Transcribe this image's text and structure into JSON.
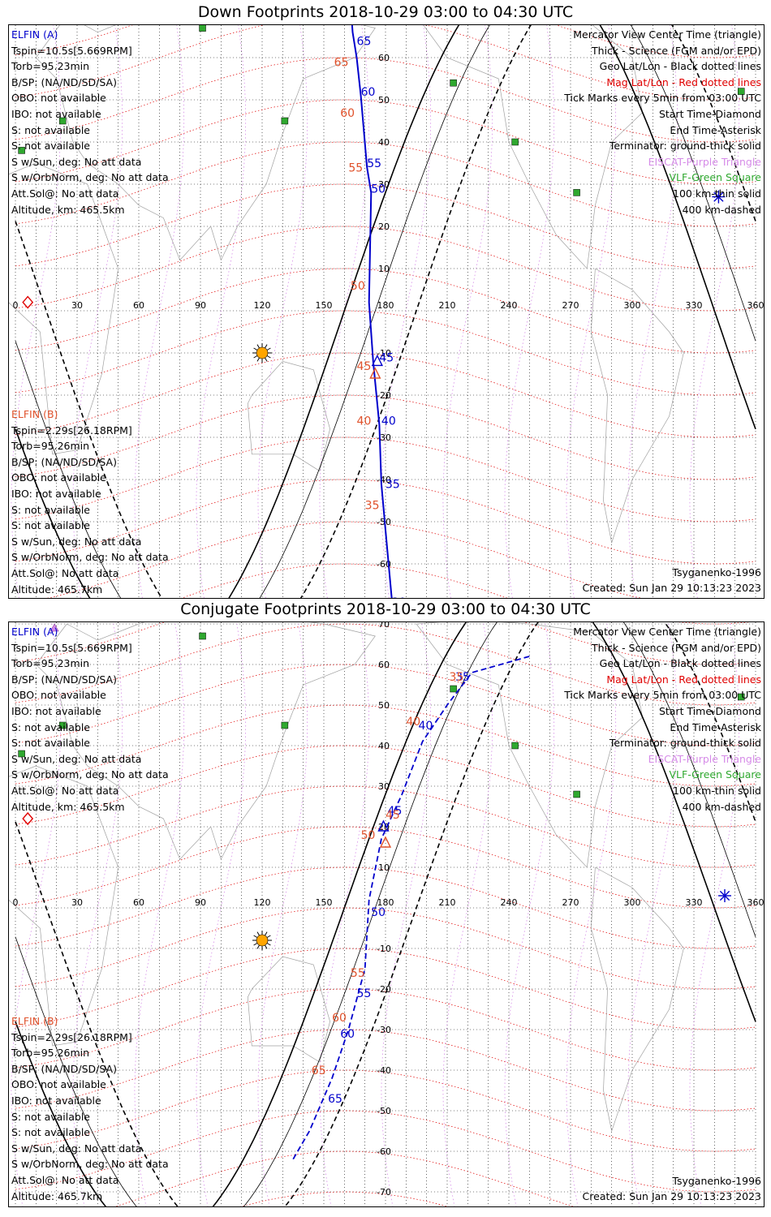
{
  "panels": [
    {
      "title": "Down Footprints 2018-10-29 03:00 to 04:30 UTC",
      "elfin_a": {
        "header": "ELFIN (A)",
        "lines": [
          "Tspin=10.5s[5.669RPM]",
          "Torb=95.23min",
          "B/SP: (NA/ND/SD/SA)",
          "OBO: not available",
          "IBO: not available",
          "S: not available",
          "S: not available",
          "S w/Sun, deg: No att data",
          "S w/OrbNorm, deg: No att data",
          "Att.Sol@: No att data",
          "Altitude, km: 465.5km"
        ]
      },
      "elfin_b": {
        "header": "ELFIN (B)",
        "lines": [
          "Tspin=2.29s[26.18RPM]",
          "Torb=95.26min",
          "B/SP: (NA/ND/SD/SA)",
          "OBO: not available",
          "IBO: not available",
          "S: not available",
          "S: not available",
          "S w/Sun, deg: No att data",
          "S w/OrbNorm, deg: No att data",
          "Att.Sol@: No att data",
          "Altitude: 465.7km"
        ]
      },
      "model": "Tsyganenko-1996",
      "created": "Created: Sun Jan 29 10:13:23 2023"
    },
    {
      "title": "Conjugate Footprints 2018-10-29 03:00 to 04:30 UTC",
      "elfin_a": {
        "header": "ELFIN (A)",
        "lines": [
          "Tspin=10.5s[5.669RPM]",
          "Torb=95.23min",
          "B/SP: (NA/ND/SD/SA)",
          "OBO: not available",
          "IBO: not available",
          "S: not available",
          "S: not available",
          "S w/Sun, deg: No att data",
          "S w/OrbNorm, deg: No att data",
          "Att.Sol@: No att data",
          "Altitude, km: 465.5km"
        ]
      },
      "elfin_b": {
        "header": "ELFIN (B)",
        "lines": [
          "Tspin=2.29s[26.18RPM]",
          "Torb=95.26min",
          "B/SP: (NA/ND/SD/SA)",
          "OBO: not available",
          "IBO: not available",
          "S: not available",
          "S: not available",
          "S w/Sun, deg: No att data",
          "S w/OrbNorm, deg: No att data",
          "Att.Sol@: No att data",
          "Altitude: 465.7km"
        ]
      },
      "model": "Tsyganenko-1996",
      "created": "Created: Sun Jan 29 10:13:23 2023"
    }
  ],
  "legend": {
    "black": [
      "Mercator View Center Time (triangle)",
      "Thick - Science (FGM and/or EPD)",
      "Geo Lat/Lon - Black dotted lines"
    ],
    "red": "Mag Lat/Lon - Red dotted lines",
    "black2": [
      "Tick Marks every 5min from 03:00 UTC",
      "Start Time-Diamond",
      "End Time-Asterisk",
      "Terminator: ground-thick solid"
    ],
    "purple": "EISCAT-Purple Triangle",
    "green": "VLF-Green Square",
    "black3": [
      "100 km-thin solid",
      "400 km-dashed"
    ]
  },
  "axis": {
    "lon_ticks": [
      "0",
      "30",
      "60",
      "90",
      "120",
      "150",
      "180",
      "210",
      "240",
      "270",
      "300",
      "330",
      "360"
    ],
    "lat_ticks": [
      "70",
      "60",
      "50",
      "40",
      "30",
      "20",
      "10",
      "-10",
      "-20",
      "-30",
      "-40",
      "-50",
      "-60",
      "-70"
    ]
  },
  "chart_data": {
    "type": "map",
    "projection": "Mercator",
    "lon_range": [
      0,
      360
    ],
    "lat_range": [
      -80,
      80
    ],
    "colors": {
      "elfin_a": "#0000cc",
      "elfin_b": "#e0522c",
      "geo_grid": "#000000",
      "mag_grid": "#e00000",
      "eiscat": "#d68ce8",
      "vlf": "#2fa82f",
      "sun": "#ffa500"
    },
    "vlf_stations": [
      [
        -7,
        52
      ],
      [
        23,
        45
      ],
      [
        3,
        38
      ],
      [
        91,
        67
      ],
      [
        131,
        45
      ],
      [
        213,
        54
      ],
      [
        243,
        40
      ],
      [
        273,
        28
      ]
    ],
    "eiscat_stations": [
      [
        19,
        69
      ],
      [
        -5,
        78
      ]
    ],
    "down": {
      "elfin_a": {
        "points": [
          [
            161,
            80
          ],
          [
            163,
            73
          ],
          [
            164,
            66
          ],
          [
            166,
            60
          ],
          [
            168,
            51
          ],
          [
            171,
            34
          ],
          [
            173,
            28
          ],
          [
            172,
            2
          ],
          [
            174,
            -12
          ],
          [
            177,
            -27
          ],
          [
            178,
            -41
          ],
          [
            180,
            -52
          ],
          [
            183,
            -68
          ],
          [
            186,
            -82
          ]
        ],
        "tick_labels": [
          [
            "65",
            166,
            63
          ],
          [
            "60",
            168,
            51
          ],
          [
            "55",
            171,
            34
          ],
          [
            "50",
            173,
            28
          ],
          [
            "45",
            177,
            -12
          ],
          [
            "40",
            178,
            -27
          ],
          [
            "35",
            180,
            -42
          ],
          [
            "30",
            183,
            -70
          ]
        ],
        "center_triangle": [
          176,
          -12
        ],
        "start_diamond": [
          6,
          2
        ],
        "end_asterisk": [
          342,
          27
        ]
      },
      "elfin_b": {
        "tick_labels": [
          [
            "65",
            155,
            58
          ],
          [
            "60",
            158,
            46
          ],
          [
            "55",
            162,
            33
          ],
          [
            "50",
            163,
            5
          ],
          [
            "45",
            166,
            -14
          ],
          [
            "40",
            166,
            -27
          ],
          [
            "35",
            170,
            -47
          ],
          [
            "30",
            174,
            -73
          ]
        ],
        "center_triangle": [
          175,
          -15
        ]
      }
    },
    "conjugate": {
      "elfin_a": {
        "points": [
          [
            250,
            62
          ],
          [
            222,
            58
          ],
          [
            210,
            50
          ],
          [
            198,
            41
          ],
          [
            188,
            28
          ],
          [
            178,
            17
          ],
          [
            172,
            2
          ],
          [
            170,
            -15
          ],
          [
            162,
            -30
          ],
          [
            154,
            -42
          ],
          [
            143,
            -55
          ],
          [
            135,
            -62
          ]
        ],
        "tick_labels": [
          [
            "35",
            214,
            56
          ],
          [
            "40",
            196,
            44
          ],
          [
            "45",
            181,
            23
          ],
          [
            "50",
            173,
            -2
          ],
          [
            "55",
            166,
            -22
          ],
          [
            "60",
            158,
            -32
          ],
          [
            "65",
            152,
            -48
          ]
        ],
        "center_triangle": [
          179,
          20
        ],
        "start_diamond": [
          6,
          22
        ],
        "end_asterisk": [
          345,
          3
        ]
      },
      "elfin_b": {
        "tick_labels": [
          [
            "35",
            211,
            56
          ],
          [
            "40",
            190,
            45
          ],
          [
            "45",
            180,
            22
          ],
          [
            "50",
            168,
            17
          ],
          [
            "55",
            163,
            -17
          ],
          [
            "60",
            154,
            -28
          ],
          [
            "65",
            144,
            -41
          ]
        ],
        "center_triangle": [
          180,
          16
        ]
      }
    }
  }
}
